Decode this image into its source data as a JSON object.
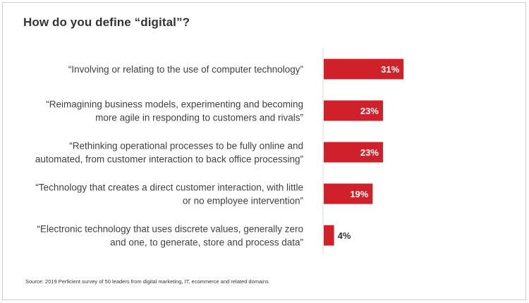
{
  "title": "How do you define “digital”?",
  "source": "Source: 2019 Perficient survey of 50 leaders from digital marketing, IT, ecommerce and related domains",
  "colors": {
    "bar": "#d0202a",
    "inside_label": "#ffffff",
    "outside_label": "#333333",
    "axis": "#d9d9d9"
  },
  "chart_data": {
    "type": "bar",
    "orientation": "horizontal",
    "categories": [
      [
        "“Involving or relating to the use of computer technology”"
      ],
      [
        "“Reimagining business models, experimenting and becoming",
        "more agile in responding to customers and rivals”"
      ],
      [
        "“Rethinking operational processes to be fully online and",
        "automated, from customer interaction to back office processing”"
      ],
      [
        "“Technology that creates a direct customer interaction, with little",
        "or no employee intervention”"
      ],
      [
        "“Electronic technology that uses discrete values, generally zero",
        "and one, to generate, store and process data”"
      ]
    ],
    "values": [
      31,
      23,
      23,
      19,
      4
    ],
    "value_labels": [
      "31%",
      "23%",
      "23%",
      "19%",
      "4%"
    ],
    "unit": "%",
    "xlim": [
      0,
      100
    ],
    "grid": false,
    "legend": "none"
  }
}
